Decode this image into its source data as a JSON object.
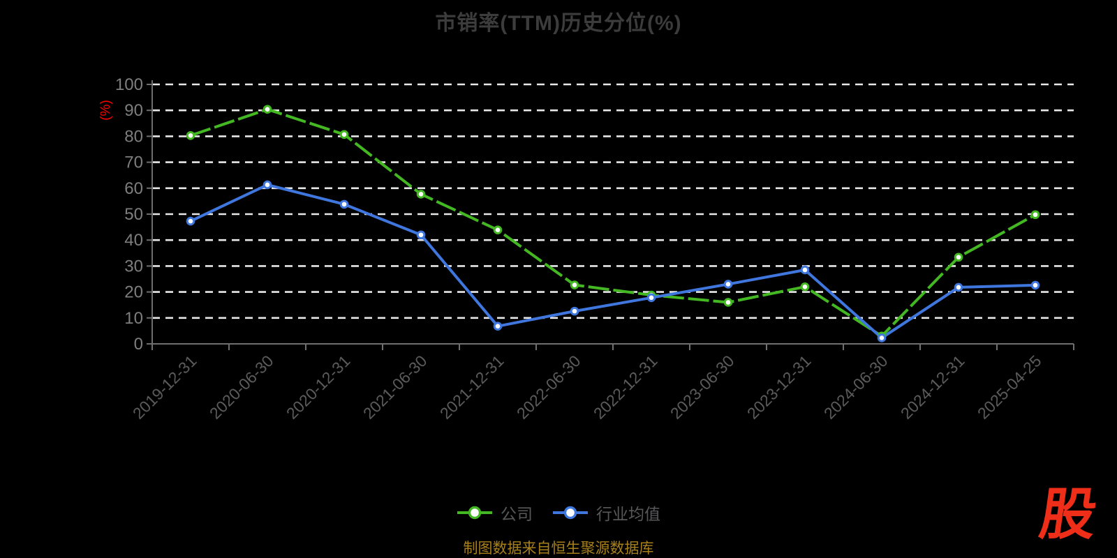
{
  "chart_data": {
    "type": "line",
    "title": "市销率(TTM)历史分位(%)",
    "unit_label": "(%)",
    "unit_label_color": "#ff0000",
    "categories": [
      "2019-12-31",
      "2020-06-30",
      "2020-12-31",
      "2021-06-30",
      "2021-12-31",
      "2022-06-30",
      "2022-12-31",
      "2023-06-30",
      "2023-12-31",
      "2024-06-30",
      "2024-12-31",
      "2025-04-25"
    ],
    "series": [
      {
        "name": "公司",
        "color": "#44b823",
        "line_style": "dashed",
        "values": [
          80.3,
          90.4,
          80.7,
          57.7,
          43.9,
          22.7,
          18.8,
          16.0,
          22.0,
          3.0,
          33.4,
          49.8
        ]
      },
      {
        "name": "行业均值",
        "color": "#3f77de",
        "line_style": "solid",
        "values": [
          47.3,
          61.3,
          53.8,
          42.0,
          6.8,
          12.6,
          17.8,
          23.0,
          28.5,
          2.3,
          21.8,
          22.6
        ]
      }
    ],
    "ylim": [
      0,
      100
    ],
    "y_interval": 10,
    "grid": "dashed-horizontal-white",
    "legend_position": "bottom"
  },
  "footer": {
    "source_note": "制图数据来自恒生聚源数据库"
  },
  "watermark": {
    "text": "股",
    "color": "#ee2e18"
  }
}
